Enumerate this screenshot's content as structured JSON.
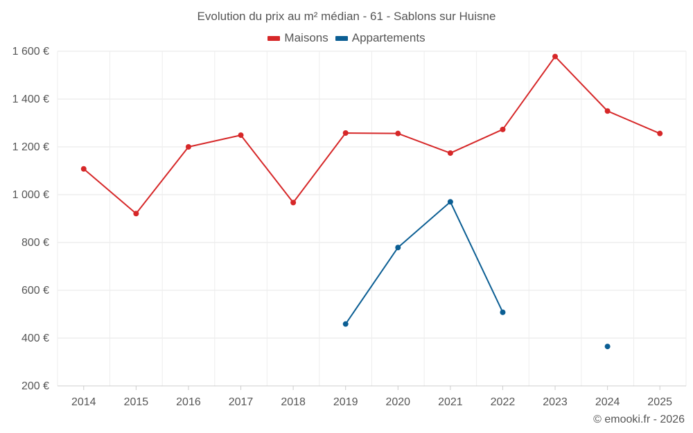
{
  "chart_data": {
    "type": "line",
    "title": "Evolution du prix au m² médian - 61 - Sablons sur Huisne",
    "xlabel": "",
    "ylabel": "",
    "categories": [
      "2014",
      "2015",
      "2016",
      "2017",
      "2018",
      "2019",
      "2020",
      "2021",
      "2022",
      "2023",
      "2024",
      "2025"
    ],
    "ylim": [
      200,
      1600
    ],
    "yticks": [
      200,
      400,
      600,
      800,
      1000,
      1200,
      1400,
      1600
    ],
    "ytick_labels": [
      "200 €",
      "400 €",
      "600 €",
      "800 €",
      "1 000 €",
      "1 200 €",
      "1 400 €",
      "1 600 €"
    ],
    "grid": true,
    "legend_position": "top-center",
    "series": [
      {
        "name": "Maisons",
        "color": "#d62728",
        "values": [
          1108,
          921,
          1200,
          1249,
          967,
          1258,
          1256,
          1174,
          1273,
          1578,
          1350,
          1256
        ]
      },
      {
        "name": "Appartements",
        "color": "#0b5e93",
        "values": [
          null,
          null,
          null,
          null,
          null,
          459,
          779,
          970,
          508,
          null,
          365,
          null
        ]
      }
    ]
  },
  "footer": {
    "copyright": "© emooki.fr - 2026"
  }
}
